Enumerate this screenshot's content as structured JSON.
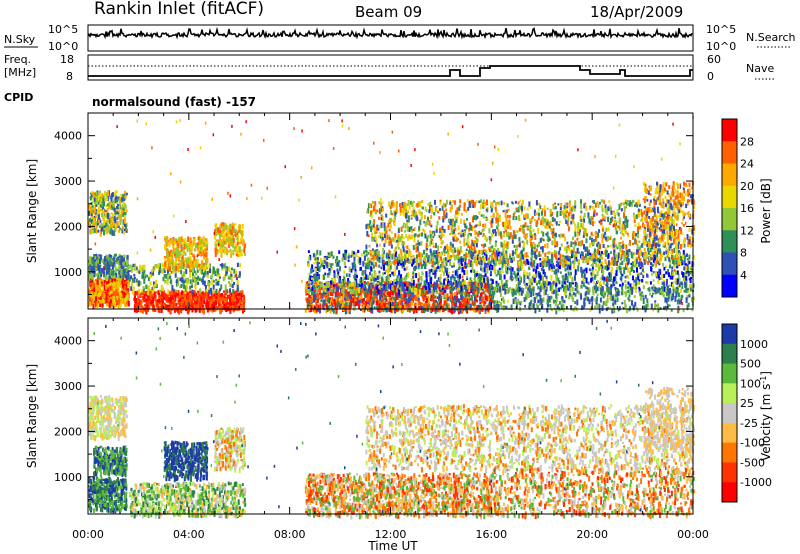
{
  "header": {
    "station": "Rankin Inlet (fitACF)",
    "beam": "Beam 09",
    "date": "18/Apr/2009"
  },
  "noise_panel": {
    "left_label": "N.Sky",
    "left_ticks": [
      "10^5",
      "10^0"
    ],
    "right_label": "N.Search",
    "right_ticks": [
      "10^5",
      "10^0"
    ]
  },
  "freq_panel": {
    "left_label_1": "Freq.",
    "left_label_2": "[MHz]",
    "left_ticks": [
      "18",
      "8"
    ],
    "right_label": "Nave",
    "right_ticks": [
      "60",
      "0"
    ],
    "cpid_label": "CPID",
    "cpid_text": "normalsound (fast) -157"
  },
  "chart_data": [
    {
      "type": "heatmap",
      "name": "power",
      "ylabel": "Slant Range [km]",
      "y_ticks": [
        "4000",
        "3000",
        "2000",
        "1000"
      ],
      "y_tick_values": [
        4000,
        3000,
        2000,
        1000
      ],
      "ylim": [
        180,
        4500
      ],
      "x_ticks": [
        "00:00",
        "04:00",
        "08:00",
        "12:00",
        "16:00",
        "20:00",
        "00:00"
      ],
      "xlim": [
        0,
        24
      ],
      "colorbar_label": "Power [dB]",
      "colorbar_ticks": [
        "28",
        "24",
        "20",
        "16",
        "12",
        "8",
        "4"
      ],
      "colorbar_colors": [
        "#ff0000",
        "#ff6000",
        "#ffa800",
        "#e8d800",
        "#90c838",
        "#2e9058",
        "#3050b8",
        "#0000ff"
      ]
    },
    {
      "type": "heatmap",
      "name": "velocity",
      "ylabel": "Slant Range [km]",
      "y_ticks": [
        "4000",
        "3000",
        "2000",
        "1000"
      ],
      "y_tick_values": [
        4000,
        3000,
        2000,
        1000
      ],
      "ylim": [
        180,
        4500
      ],
      "x_ticks": [
        "00:00",
        "04:00",
        "08:00",
        "12:00",
        "16:00",
        "20:00",
        "00:00"
      ],
      "xlim": [
        0,
        24
      ],
      "xlabel": "Time UT",
      "colorbar_label": "Velocity [m s",
      "colorbar_label_sup": "-1",
      "colorbar_label_end": "]",
      "colorbar_ticks": [
        "1000",
        "500",
        "100",
        "25",
        "-25",
        "-100",
        "-500",
        "-1000"
      ],
      "colorbar_colors": [
        "#1c3aa8",
        "#2d7f4c",
        "#5cba3a",
        "#b9f05a",
        "#c8c8c8",
        "#ffbb44",
        "#ff7700",
        "#ff3300",
        "#ff0000"
      ]
    }
  ]
}
